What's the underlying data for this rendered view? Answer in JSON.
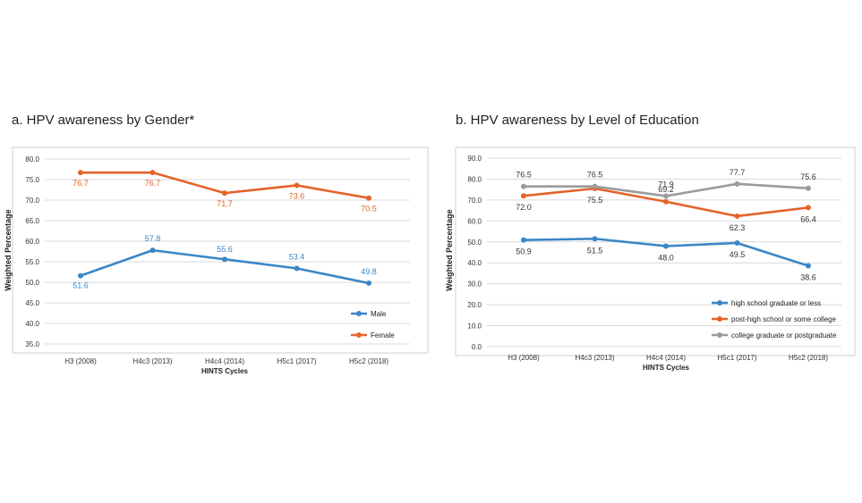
{
  "chart_data": [
    {
      "type": "line",
      "title": "a.   HPV awareness by Gender*",
      "xlabel": "HINTS Cycles",
      "ylabel": "Weighted Percentage",
      "categories": [
        "H3 (2008)",
        "H4c3 (2013)",
        "H4c4 (2014)",
        "H5c1 (2017)",
        "H5c2 (2018)"
      ],
      "ylim": [
        35.0,
        80.0
      ],
      "yticks": [
        "35.0",
        "40.0",
        "45.0",
        "50.0",
        "55.0",
        "60.0",
        "65.0",
        "70.0",
        "75.0",
        "80.0"
      ],
      "grid": true,
      "legend_position": "bottom-right",
      "series": [
        {
          "name": "Male",
          "color": "#3b86c6",
          "values": [
            51.6,
            57.8,
            55.6,
            53.4,
            49.8
          ],
          "labels": [
            "51.6",
            "57.8",
            "55.6",
            "53.4",
            "49.8"
          ]
        },
        {
          "name": "Female",
          "color": "#e3642b",
          "values": [
            76.7,
            76.7,
            71.7,
            73.6,
            70.5
          ],
          "labels": [
            "76.7",
            "76.7",
            "71.7",
            "73.6",
            "70.5"
          ]
        }
      ]
    },
    {
      "type": "line",
      "title": "b.  HPV awareness by Level of Education",
      "xlabel": "HINTS Cycles",
      "ylabel": "Weighted Percentage",
      "categories": [
        "H3 (2008)",
        "H4c3 (2013)",
        "H4c4 (2014)",
        "H5c1 (2017)",
        "H5c2 (2018)"
      ],
      "ylim": [
        0.0,
        90.0
      ],
      "yticks": [
        "0.0",
        "10.0",
        "20.0",
        "30.0",
        "40.0",
        "50.0",
        "60.0",
        "70.0",
        "80.0",
        "90.0"
      ],
      "grid": true,
      "legend_position": "bottom-right",
      "series": [
        {
          "name": "high school graduate or less",
          "color": "#3b86c6",
          "values": [
            50.9,
            51.5,
            48.0,
            49.5,
            38.6
          ],
          "labels": [
            "50.9",
            "51.5",
            "48.0",
            "49.5",
            "38.6"
          ]
        },
        {
          "name": "post-high school or some college",
          "color": "#e3642b",
          "values": [
            72.0,
            75.5,
            69.2,
            62.3,
            66.4
          ],
          "labels": [
            "72.0",
            "75.5",
            "69.2",
            "62.3",
            "66.4"
          ]
        },
        {
          "name": "college graduate or postgraduate",
          "color": "#9b9b9b",
          "values": [
            76.5,
            76.5,
            71.9,
            77.7,
            75.6
          ],
          "labels": [
            "76.5",
            "76.5",
            "71.9",
            "77.7",
            "75.6"
          ]
        }
      ]
    }
  ]
}
